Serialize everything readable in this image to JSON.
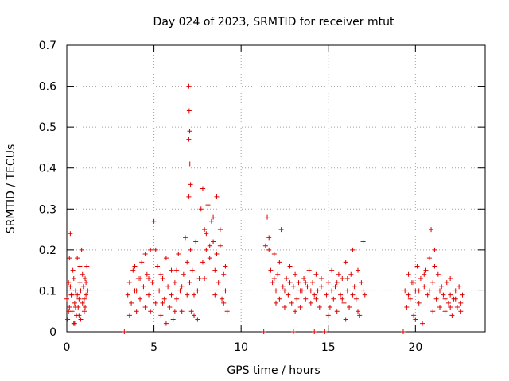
{
  "chart_data": {
    "type": "scatter",
    "title": "Day 024 of 2023, SRMTID for receiver mtut",
    "xlabel": "GPS time / hours",
    "ylabel": "SRMTID / TECUs",
    "xlim": [
      0,
      24
    ],
    "ylim": [
      0,
      0.7
    ],
    "xticks": [
      0,
      5,
      10,
      15,
      20
    ],
    "xtick_labels": [
      "0",
      "5",
      "10",
      "15",
      "20"
    ],
    "yticks": [
      0,
      0.1,
      0.2,
      0.3,
      0.4,
      0.5,
      0.6,
      0.7
    ],
    "ytick_labels": [
      "0",
      "0.1",
      "0.2",
      "0.3",
      "0.4",
      "0.5",
      "0.6",
      "0.7"
    ],
    "grid": true,
    "marker": "+",
    "color": "#e00000",
    "series": [
      {
        "name": "SRMTID",
        "points": [
          [
            0.0,
            0.08
          ],
          [
            0.05,
            0.03
          ],
          [
            0.1,
            0.12
          ],
          [
            0.15,
            0.06
          ],
          [
            0.2,
            0.24
          ],
          [
            0.25,
            0.09
          ],
          [
            0.3,
            0.05
          ],
          [
            0.35,
            0.15
          ],
          [
            0.4,
            0.02
          ],
          [
            0.45,
            0.07
          ],
          [
            0.5,
            0.1
          ],
          [
            0.55,
            0.04
          ],
          [
            0.6,
            0.18
          ],
          [
            0.65,
            0.06
          ],
          [
            0.7,
            0.08
          ],
          [
            0.75,
            0.12
          ],
          [
            0.8,
            0.03
          ],
          [
            0.85,
            0.2
          ],
          [
            0.9,
            0.07
          ],
          [
            0.95,
            0.11
          ],
          [
            1.0,
            0.05
          ],
          [
            1.05,
            0.13
          ],
          [
            1.1,
            0.09
          ],
          [
            1.15,
            0.16
          ],
          [
            1.2,
            0.1
          ],
          [
            0.1,
            0.05
          ],
          [
            0.2,
            0.11
          ],
          [
            0.3,
            0.09
          ],
          [
            0.4,
            0.13
          ],
          [
            0.5,
            0.06
          ],
          [
            0.6,
            0.09
          ],
          [
            0.7,
            0.04
          ],
          [
            0.8,
            0.1
          ],
          [
            0.9,
            0.14
          ],
          [
            1.0,
            0.08
          ],
          [
            1.1,
            0.12
          ],
          [
            0.15,
            0.18
          ],
          [
            0.45,
            0.02
          ],
          [
            0.75,
            0.16
          ],
          [
            1.05,
            0.06
          ],
          [
            3.3,
            0.0
          ],
          [
            3.5,
            0.09
          ],
          [
            3.6,
            0.12
          ],
          [
            3.7,
            0.07
          ],
          [
            3.8,
            0.15
          ],
          [
            3.9,
            0.1
          ],
          [
            4.0,
            0.05
          ],
          [
            4.1,
            0.13
          ],
          [
            4.2,
            0.08
          ],
          [
            4.3,
            0.17
          ],
          [
            4.4,
            0.11
          ],
          [
            4.5,
            0.06
          ],
          [
            4.6,
            0.14
          ],
          [
            4.7,
            0.09
          ],
          [
            4.8,
            0.2
          ],
          [
            4.9,
            0.12
          ],
          [
            5.0,
            0.27
          ],
          [
            5.1,
            0.07
          ],
          [
            5.2,
            0.16
          ],
          [
            5.3,
            0.1
          ],
          [
            5.4,
            0.04
          ],
          [
            5.5,
            0.13
          ],
          [
            5.6,
            0.08
          ],
          [
            5.7,
            0.18
          ],
          [
            5.8,
            0.11
          ],
          [
            5.9,
            0.06
          ],
          [
            6.0,
            0.15
          ],
          [
            6.1,
            0.03
          ],
          [
            6.2,
            0.12
          ],
          [
            6.3,
            0.08
          ],
          [
            6.4,
            0.19
          ],
          [
            6.5,
            0.1
          ],
          [
            6.6,
            0.05
          ],
          [
            6.7,
            0.14
          ],
          [
            6.8,
            0.23
          ],
          [
            6.9,
            0.09
          ],
          [
            3.6,
            0.04
          ],
          [
            3.9,
            0.16
          ],
          [
            4.2,
            0.13
          ],
          [
            4.5,
            0.19
          ],
          [
            4.8,
            0.05
          ],
          [
            5.1,
            0.2
          ],
          [
            5.4,
            0.14
          ],
          [
            5.7,
            0.02
          ],
          [
            6.0,
            0.09
          ],
          [
            6.3,
            0.15
          ],
          [
            6.6,
            0.11
          ],
          [
            6.9,
            0.17
          ],
          [
            4.0,
            0.1
          ],
          [
            4.7,
            0.13
          ],
          [
            5.5,
            0.07
          ],
          [
            6.2,
            0.05
          ],
          [
            7.0,
            0.6
          ],
          [
            7.02,
            0.54
          ],
          [
            7.05,
            0.49
          ],
          [
            7.0,
            0.47
          ],
          [
            7.06,
            0.41
          ],
          [
            7.1,
            0.36
          ],
          [
            7.0,
            0.33
          ],
          [
            7.05,
            0.12
          ],
          [
            7.1,
            0.2
          ],
          [
            7.15,
            0.05
          ],
          [
            7.2,
            0.15
          ],
          [
            7.3,
            0.09
          ],
          [
            7.4,
            0.22
          ],
          [
            7.5,
            0.03
          ],
          [
            7.6,
            0.13
          ],
          [
            7.7,
            0.3
          ],
          [
            7.8,
            0.35
          ],
          [
            7.9,
            0.25
          ],
          [
            8.0,
            0.2
          ],
          [
            8.1,
            0.31
          ],
          [
            8.2,
            0.18
          ],
          [
            8.3,
            0.27
          ],
          [
            8.4,
            0.22
          ],
          [
            8.5,
            0.15
          ],
          [
            8.6,
            0.33
          ],
          [
            8.7,
            0.12
          ],
          [
            8.8,
            0.21
          ],
          [
            8.9,
            0.08
          ],
          [
            9.0,
            0.14
          ],
          [
            9.1,
            0.1
          ],
          [
            9.2,
            0.05
          ],
          [
            7.5,
            0.1
          ],
          [
            7.8,
            0.17
          ],
          [
            8.0,
            0.24
          ],
          [
            8.2,
            0.21
          ],
          [
            8.4,
            0.28
          ],
          [
            8.6,
            0.19
          ],
          [
            8.8,
            0.25
          ],
          [
            9.0,
            0.07
          ],
          [
            7.3,
            0.04
          ],
          [
            7.9,
            0.13
          ],
          [
            8.5,
            0.09
          ],
          [
            9.1,
            0.16
          ],
          [
            11.3,
            0.0
          ],
          [
            11.4,
            0.21
          ],
          [
            11.5,
            0.28
          ],
          [
            11.6,
            0.23
          ],
          [
            11.7,
            0.15
          ],
          [
            11.8,
            0.12
          ],
          [
            11.9,
            0.19
          ],
          [
            12.0,
            0.1
          ],
          [
            12.1,
            0.14
          ],
          [
            12.2,
            0.08
          ],
          [
            12.3,
            0.25
          ],
          [
            12.4,
            0.11
          ],
          [
            12.5,
            0.06
          ],
          [
            12.6,
            0.13
          ],
          [
            12.7,
            0.09
          ],
          [
            12.8,
            0.16
          ],
          [
            12.9,
            0.07
          ],
          [
            13.0,
            0.11
          ],
          [
            13.1,
            0.14
          ],
          [
            13.2,
            0.08
          ],
          [
            13.3,
            0.12
          ],
          [
            13.4,
            0.06
          ],
          [
            13.5,
            0.1
          ],
          [
            13.6,
            0.13
          ],
          [
            13.7,
            0.08
          ],
          [
            13.8,
            0.11
          ],
          [
            13.9,
            0.15
          ],
          [
            14.0,
            0.07
          ],
          [
            14.1,
            0.12
          ],
          [
            14.2,
            0.09
          ],
          [
            14.3,
            0.14
          ],
          [
            14.4,
            0.1
          ],
          [
            14.5,
            0.06
          ],
          [
            14.6,
            0.13
          ],
          [
            14.8,
            0.0
          ],
          [
            11.6,
            0.2
          ],
          [
            11.9,
            0.13
          ],
          [
            12.2,
            0.17
          ],
          [
            12.5,
            0.1
          ],
          [
            12.8,
            0.12
          ],
          [
            13.1,
            0.05
          ],
          [
            13.4,
            0.1
          ],
          [
            13.7,
            0.12
          ],
          [
            14.0,
            0.1
          ],
          [
            14.3,
            0.08
          ],
          [
            14.6,
            0.11
          ],
          [
            12.0,
            0.07
          ],
          [
            13.0,
            0.0
          ],
          [
            14.2,
            0.0
          ],
          [
            14.9,
            0.09
          ],
          [
            15.0,
            0.12
          ],
          [
            15.1,
            0.06
          ],
          [
            15.2,
            0.15
          ],
          [
            15.3,
            0.08
          ],
          [
            15.4,
            0.11
          ],
          [
            15.5,
            0.05
          ],
          [
            15.6,
            0.14
          ],
          [
            15.7,
            0.09
          ],
          [
            15.8,
            0.13
          ],
          [
            15.9,
            0.07
          ],
          [
            16.0,
            0.17
          ],
          [
            16.1,
            0.1
          ],
          [
            16.2,
            0.06
          ],
          [
            16.3,
            0.14
          ],
          [
            16.4,
            0.2
          ],
          [
            16.5,
            0.11
          ],
          [
            16.6,
            0.08
          ],
          [
            16.7,
            0.15
          ],
          [
            16.8,
            0.04
          ],
          [
            16.9,
            0.12
          ],
          [
            17.0,
            0.22
          ],
          [
            17.1,
            0.09
          ],
          [
            15.2,
            0.1
          ],
          [
            15.5,
            0.12
          ],
          [
            15.8,
            0.08
          ],
          [
            16.1,
            0.13
          ],
          [
            16.4,
            0.09
          ],
          [
            16.7,
            0.05
          ],
          [
            17.0,
            0.1
          ],
          [
            15.0,
            0.04
          ],
          [
            16.0,
            0.03
          ],
          [
            19.3,
            0.0
          ],
          [
            19.4,
            0.1
          ],
          [
            19.5,
            0.06
          ],
          [
            19.6,
            0.14
          ],
          [
            19.7,
            0.08
          ],
          [
            19.8,
            0.12
          ],
          [
            19.9,
            0.04
          ],
          [
            20.0,
            0.1
          ],
          [
            20.1,
            0.16
          ],
          [
            20.2,
            0.07
          ],
          [
            20.3,
            0.13
          ],
          [
            20.4,
            0.02
          ],
          [
            20.5,
            0.11
          ],
          [
            20.6,
            0.15
          ],
          [
            20.7,
            0.09
          ],
          [
            20.8,
            0.18
          ],
          [
            20.9,
            0.25
          ],
          [
            21.0,
            0.12
          ],
          [
            21.1,
            0.2
          ],
          [
            21.2,
            0.08
          ],
          [
            21.3,
            0.14
          ],
          [
            21.4,
            0.06
          ],
          [
            21.5,
            0.11
          ],
          [
            21.6,
            0.09
          ],
          [
            21.7,
            0.05
          ],
          [
            21.8,
            0.12
          ],
          [
            21.9,
            0.07
          ],
          [
            22.0,
            0.13
          ],
          [
            22.1,
            0.04
          ],
          [
            22.2,
            0.08
          ],
          [
            22.3,
            0.1
          ],
          [
            22.4,
            0.06
          ],
          [
            22.5,
            0.11
          ],
          [
            22.6,
            0.07
          ],
          [
            22.7,
            0.09
          ],
          [
            19.6,
            0.09
          ],
          [
            19.9,
            0.12
          ],
          [
            20.2,
            0.1
          ],
          [
            20.5,
            0.14
          ],
          [
            20.8,
            0.1
          ],
          [
            21.1,
            0.16
          ],
          [
            21.4,
            0.1
          ],
          [
            21.7,
            0.08
          ],
          [
            22.0,
            0.06
          ],
          [
            22.3,
            0.08
          ],
          [
            22.6,
            0.05
          ],
          [
            20.0,
            0.03
          ],
          [
            21.0,
            0.05
          ],
          [
            22.0,
            0.09
          ]
        ]
      }
    ]
  }
}
